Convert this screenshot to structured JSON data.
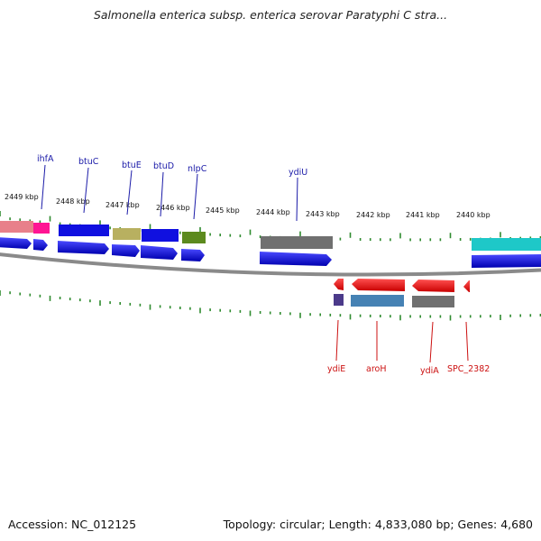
{
  "title": "Salmonella enterica subsp. enterica serovar Paratyphi C stra...",
  "footer": {
    "accession": "Accession: NC_012125",
    "topology": "Topology: circular; Length: 4,833,080 bp; Genes: 4,680"
  },
  "colors": {
    "backbone": "#8a8a8a",
    "tick": "#2e8b2e",
    "forward_label": "#1a1aa8",
    "reverse_label": "#cc1111",
    "blue_gene": "#1010e0",
    "red_gene": "#ff1010"
  },
  "scale": {
    "unit": "kbp",
    "ticks": [
      {
        "label": "2449 kbp",
        "kbp": 2449
      },
      {
        "label": "2448 kbp",
        "kbp": 2448
      },
      {
        "label": "2447 kbp",
        "kbp": 2447
      },
      {
        "label": "2446 kbp",
        "kbp": 2446
      },
      {
        "label": "2445 kbp",
        "kbp": 2445
      },
      {
        "label": "2444 kbp",
        "kbp": 2444
      },
      {
        "label": "2443 kbp",
        "kbp": 2443
      },
      {
        "label": "2442 kbp",
        "kbp": 2442
      },
      {
        "label": "2441 kbp",
        "kbp": 2441
      },
      {
        "label": "2440 kbp",
        "kbp": 2440
      }
    ]
  },
  "forward_genes": [
    {
      "name": "ihfA",
      "color": "#1010e0"
    },
    {
      "name": "btuC",
      "color": "#1010e0"
    },
    {
      "name": "btuE",
      "color": "#1010e0"
    },
    {
      "name": "btuD",
      "color": "#1010e0"
    },
    {
      "name": "nlpC",
      "color": "#1010e0"
    },
    {
      "name": "ydiU",
      "color": "#1010e0"
    }
  ],
  "reverse_genes": [
    {
      "name": "ydiE",
      "color": "#ff1010"
    },
    {
      "name": "aroH",
      "color": "#ff1010"
    },
    {
      "name": "ydiA",
      "color": "#ff1010"
    },
    {
      "name": "SPC_2382",
      "color": "#ff1010"
    }
  ],
  "cog_blocks": [
    {
      "color": "#e8808a"
    },
    {
      "color": "#ff1493"
    },
    {
      "color": "#1010e0"
    },
    {
      "color": "#b8b060"
    },
    {
      "color": "#1010e0"
    },
    {
      "color": "#5c8a1e"
    },
    {
      "color": "#707070"
    },
    {
      "color": "#1ec8c8"
    },
    {
      "color": "#4b3a8a"
    },
    {
      "color": "#4682b4"
    },
    {
      "color": "#707070"
    }
  ]
}
